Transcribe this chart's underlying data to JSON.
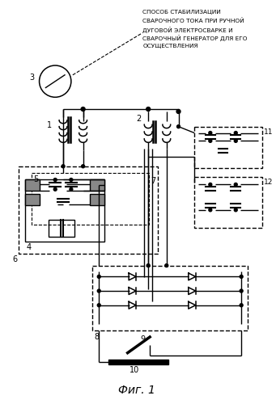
{
  "title_lines": [
    "СПОСОБ СТАБИЛИЗАЦИИ",
    "СВАРОЧНОГО ТОКА ПРИ РУЧНОЙ",
    "ДУГОВОЙ ЭЛЕКТРОСВАРКЕ И",
    "СВАРОЧНЫЙ ГЕНЕРАТОР ДЛЯ ЕГО",
    "ОСУЩЕСТВЛЕНИЯ"
  ],
  "fig_label": "Фиг. 1",
  "background": "#ffffff",
  "line_color": "#000000"
}
